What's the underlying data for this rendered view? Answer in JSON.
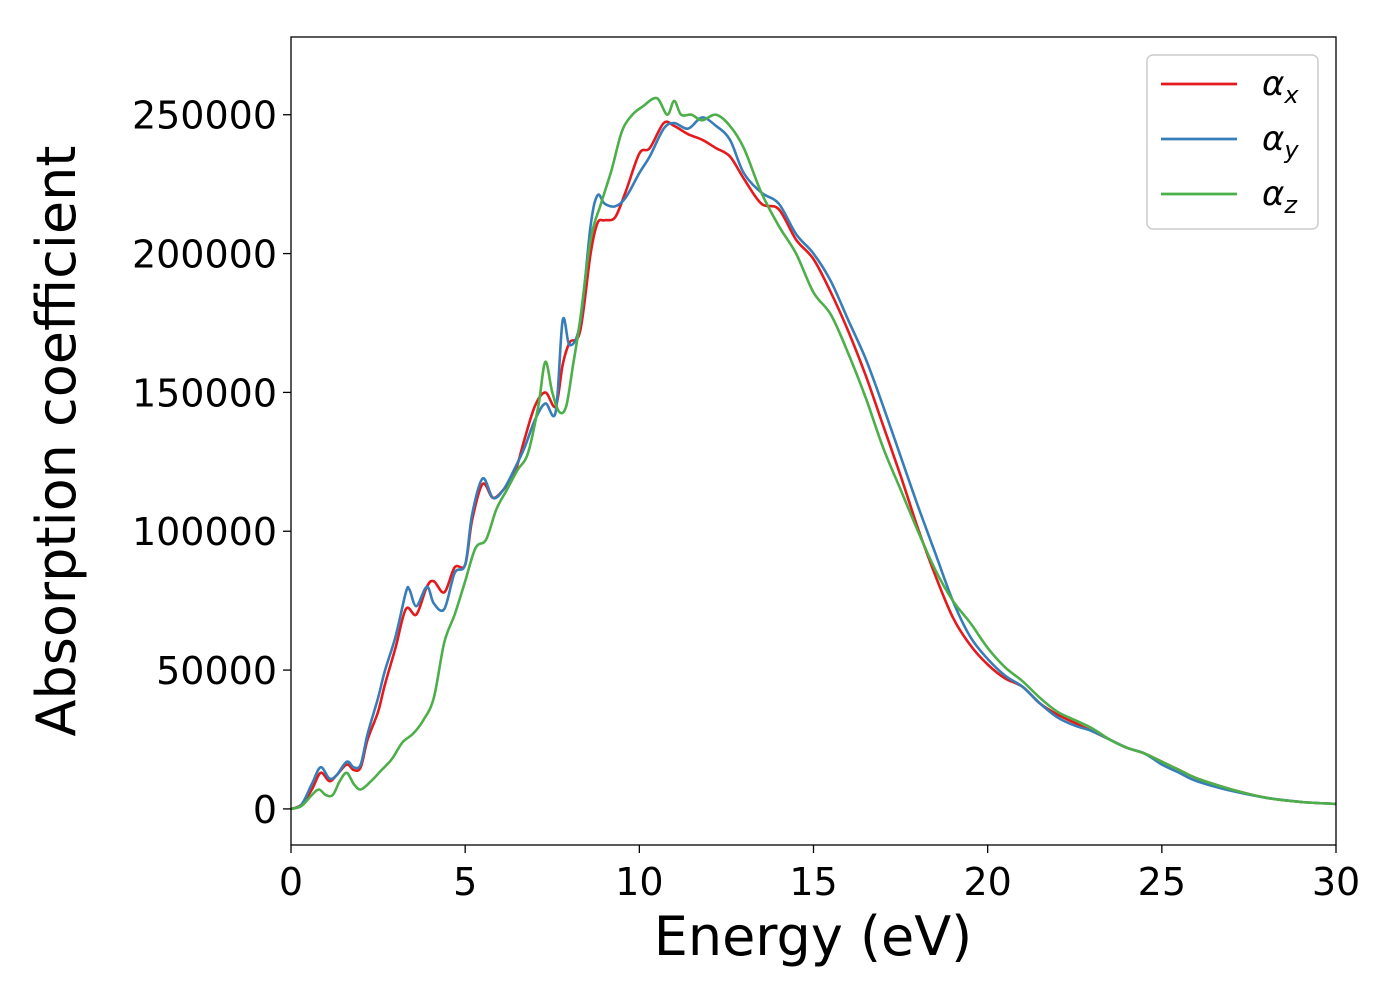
{
  "chart_data": {
    "type": "line",
    "title": "",
    "xlabel": "Energy (eV)",
    "ylabel": "Absorption coefficient",
    "xlim": [
      0,
      30
    ],
    "ylim": [
      -13000,
      278000
    ],
    "xticks": [
      0,
      5,
      10,
      15,
      20,
      25,
      30
    ],
    "xtick_labels": [
      "0",
      "5",
      "10",
      "15",
      "20",
      "25",
      "30"
    ],
    "yticks": [
      0,
      50000,
      100000,
      150000,
      200000,
      250000
    ],
    "ytick_labels": [
      "0",
      "50000",
      "100000",
      "150000",
      "200000",
      "250000"
    ],
    "grid": false,
    "legend_position": "top-right",
    "series": [
      {
        "name": "αx",
        "name_base": "α",
        "name_sub": "x",
        "color": "#e41a1c",
        "x": [
          0,
          0.3,
          0.6,
          0.85,
          1.1,
          1.3,
          1.6,
          1.8,
          2.0,
          2.2,
          2.5,
          2.7,
          3.0,
          3.3,
          3.6,
          3.9,
          4.1,
          4.4,
          4.7,
          5.0,
          5.2,
          5.5,
          5.8,
          6.1,
          6.4,
          6.7,
          7.0,
          7.3,
          7.6,
          7.8,
          8.0,
          8.3,
          8.6,
          8.8,
          9.0,
          9.3,
          9.6,
          10.0,
          10.3,
          10.7,
          11.0,
          11.4,
          11.8,
          12.2,
          12.6,
          13.0,
          13.5,
          14.0,
          14.5,
          15.0,
          15.5,
          16.0,
          16.5,
          17.0,
          17.5,
          18.0,
          18.5,
          19.0,
          19.5,
          20.0,
          20.5,
          21.0,
          21.5,
          22.0,
          22.5,
          23.0,
          23.5,
          24.0,
          24.5,
          25.0,
          25.5,
          26.0,
          27.0,
          28.0,
          29.0,
          30.0
        ],
        "y": [
          0,
          1500,
          7000,
          13000,
          10000,
          12000,
          16000,
          14000,
          15000,
          25000,
          35000,
          45000,
          58000,
          72000,
          70000,
          80000,
          82000,
          78000,
          87000,
          88000,
          104000,
          117000,
          112000,
          115000,
          120000,
          133000,
          145000,
          150000,
          145000,
          160000,
          168000,
          172000,
          200000,
          211000,
          212000,
          213000,
          222000,
          236000,
          238000,
          247000,
          246000,
          243000,
          241000,
          238000,
          235000,
          227000,
          218000,
          216000,
          205000,
          198000,
          186000,
          172000,
          156000,
          138000,
          120000,
          101000,
          84000,
          69000,
          59000,
          52000,
          47000,
          44000,
          38000,
          34000,
          31000,
          28000,
          25000,
          22000,
          20000,
          17000,
          14000,
          11000,
          7000,
          4000,
          2500,
          1800
        ]
      },
      {
        "name": "αy",
        "name_base": "α",
        "name_sub": "y",
        "color": "#377eb8",
        "x": [
          0,
          0.3,
          0.6,
          0.85,
          1.1,
          1.3,
          1.6,
          1.8,
          2.0,
          2.2,
          2.5,
          2.7,
          3.0,
          3.3,
          3.4,
          3.6,
          3.9,
          4.1,
          4.4,
          4.7,
          5.0,
          5.2,
          5.5,
          5.8,
          6.1,
          6.4,
          6.7,
          7.0,
          7.3,
          7.6,
          7.8,
          8.0,
          8.3,
          8.6,
          8.8,
          9.0,
          9.3,
          9.6,
          10.0,
          10.3,
          10.7,
          11.0,
          11.4,
          11.8,
          12.2,
          12.6,
          13.0,
          13.5,
          14.0,
          14.5,
          15.0,
          15.5,
          16.0,
          16.5,
          17.0,
          17.5,
          18.0,
          18.5,
          19.0,
          19.5,
          20.0,
          20.5,
          21.0,
          21.5,
          22.0,
          22.5,
          23.0,
          23.5,
          24.0,
          24.5,
          25.0,
          25.5,
          26.0,
          27.0,
          28.0,
          29.0,
          30.0
        ],
        "y": [
          0,
          1500,
          9000,
          15000,
          11000,
          12000,
          17000,
          15000,
          16000,
          27000,
          40000,
          50000,
          62000,
          78000,
          79000,
          73000,
          80000,
          74000,
          72000,
          85000,
          88000,
          106000,
          119000,
          112000,
          115000,
          122000,
          130000,
          140000,
          146000,
          143000,
          176000,
          167000,
          175000,
          210000,
          221000,
          218000,
          217000,
          220000,
          229000,
          235000,
          245000,
          247000,
          245000,
          249000,
          246000,
          241000,
          229000,
          222000,
          218000,
          207000,
          200000,
          190000,
          176000,
          162000,
          145000,
          127000,
          109000,
          92000,
          75000,
          62000,
          54000,
          48000,
          44000,
          38000,
          33000,
          30000,
          28000,
          25000,
          22000,
          20000,
          16000,
          13000,
          10000,
          6500,
          4000,
          2500,
          1800
        ]
      },
      {
        "name": "αz",
        "name_base": "α",
        "name_sub": "z",
        "color": "#4daf4a",
        "x": [
          0,
          0.3,
          0.6,
          0.8,
          1.0,
          1.2,
          1.4,
          1.6,
          1.8,
          2.0,
          2.3,
          2.6,
          2.9,
          3.2,
          3.5,
          3.8,
          4.1,
          4.4,
          4.7,
          5.0,
          5.3,
          5.6,
          5.9,
          6.2,
          6.5,
          6.8,
          7.1,
          7.3,
          7.5,
          7.7,
          7.9,
          8.1,
          8.3,
          8.6,
          8.9,
          9.2,
          9.5,
          9.8,
          10.1,
          10.5,
          10.8,
          11.0,
          11.2,
          11.5,
          11.8,
          12.2,
          12.6,
          13.0,
          13.5,
          14.0,
          14.5,
          15.0,
          15.5,
          16.0,
          16.5,
          17.0,
          17.5,
          18.0,
          18.5,
          19.0,
          19.5,
          20.0,
          20.5,
          21.0,
          21.5,
          22.0,
          22.5,
          23.0,
          23.5,
          24.0,
          24.5,
          25.0,
          25.5,
          26.0,
          27.0,
          28.0,
          29.0,
          30.0
        ],
        "y": [
          0,
          1000,
          5000,
          7000,
          5000,
          5000,
          10000,
          13000,
          9000,
          7000,
          10000,
          14000,
          18000,
          24000,
          27000,
          32000,
          40000,
          60000,
          70000,
          82000,
          94000,
          97000,
          108000,
          115000,
          122000,
          128000,
          145000,
          161000,
          150000,
          143000,
          145000,
          160000,
          176000,
          205000,
          218000,
          230000,
          244000,
          250000,
          253000,
          256000,
          250000,
          255000,
          250000,
          250000,
          248000,
          250000,
          246000,
          238000,
          222000,
          210000,
          200000,
          186000,
          178000,
          164000,
          148000,
          130000,
          115000,
          100000,
          86000,
          75000,
          67000,
          58000,
          51000,
          46000,
          40000,
          35000,
          32000,
          29000,
          25000,
          22000,
          20000,
          17000,
          14000,
          11000,
          7000,
          4000,
          2500,
          1800
        ]
      }
    ]
  }
}
